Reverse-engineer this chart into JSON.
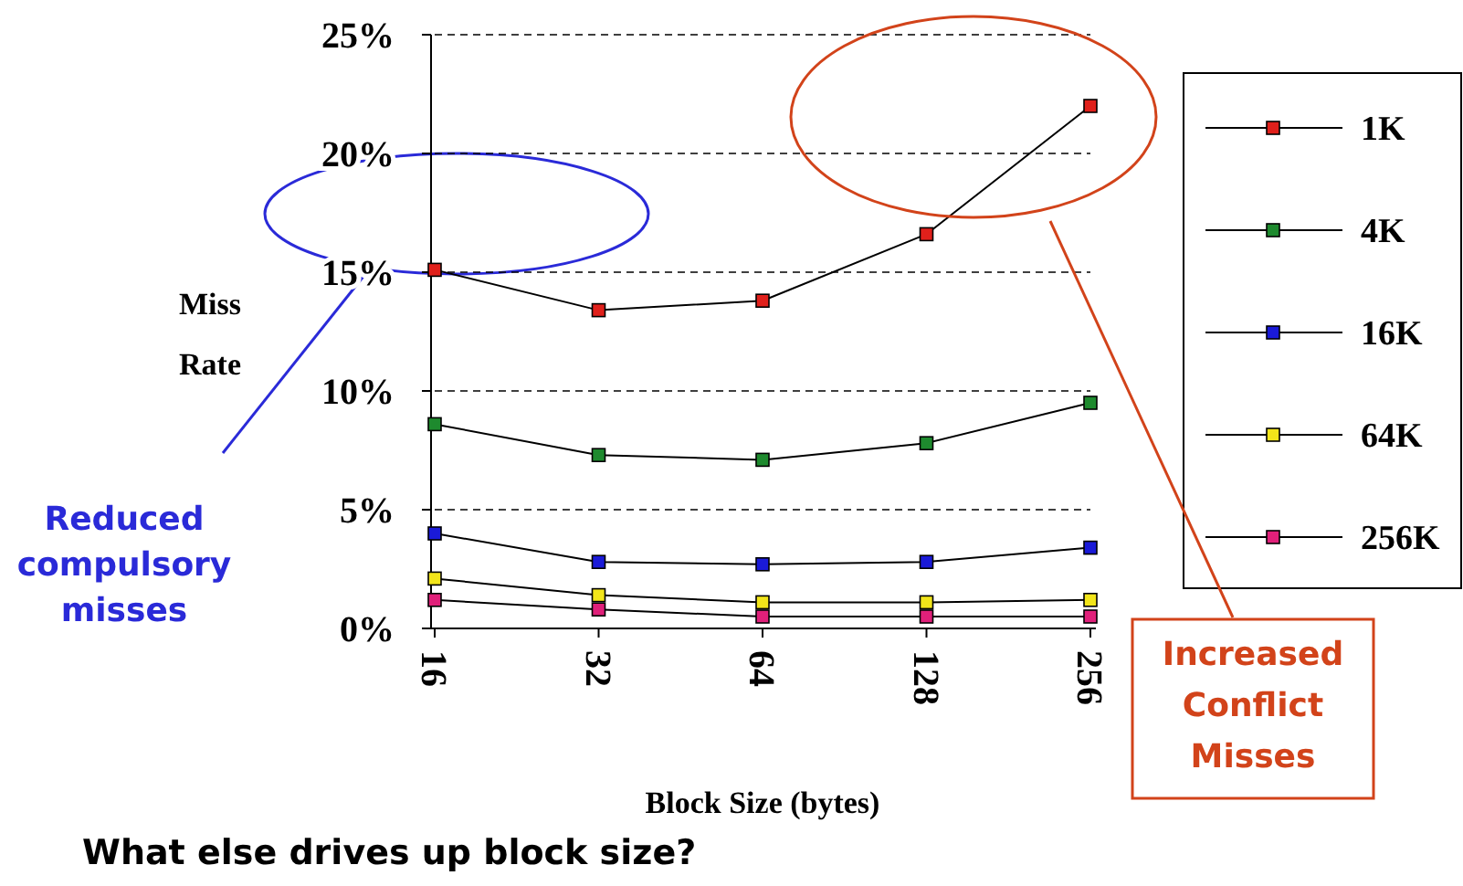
{
  "chart_data": {
    "type": "line",
    "xlabel": "Block Size (bytes)",
    "ylabel": "Miss Rate",
    "categories": [
      "16",
      "32",
      "64",
      "128",
      "256"
    ],
    "ylim": [
      0,
      25
    ],
    "yticks": [
      {
        "value": 0,
        "label": "0%"
      },
      {
        "value": 5,
        "label": "5%"
      },
      {
        "value": 10,
        "label": "10%"
      },
      {
        "value": 15,
        "label": "15%"
      },
      {
        "value": 20,
        "label": "20%"
      },
      {
        "value": 25,
        "label": "25%"
      }
    ],
    "grid": "y",
    "legend": "right",
    "marker": "square",
    "line_style": "solid",
    "series": [
      {
        "name": "1K",
        "color": "#e0201b",
        "values": [
          15.1,
          13.4,
          13.8,
          16.6,
          22.0
        ]
      },
      {
        "name": "4K",
        "color": "#1e8a2e",
        "values": [
          8.6,
          7.3,
          7.1,
          7.8,
          9.5
        ]
      },
      {
        "name": "16K",
        "color": "#1a1ad8",
        "values": [
          4.0,
          2.8,
          2.7,
          2.8,
          3.4
        ]
      },
      {
        "name": "64K",
        "color": "#f2e51a",
        "values": [
          2.1,
          1.4,
          1.1,
          1.1,
          1.2
        ]
      },
      {
        "name": "256K",
        "color": "#e0207a",
        "values": [
          1.2,
          0.8,
          0.5,
          0.5,
          0.5
        ]
      }
    ],
    "annotations": [
      "Reduced compulsory misses",
      "Increased Conflict Misses",
      "What else drives up block size?"
    ]
  }
}
